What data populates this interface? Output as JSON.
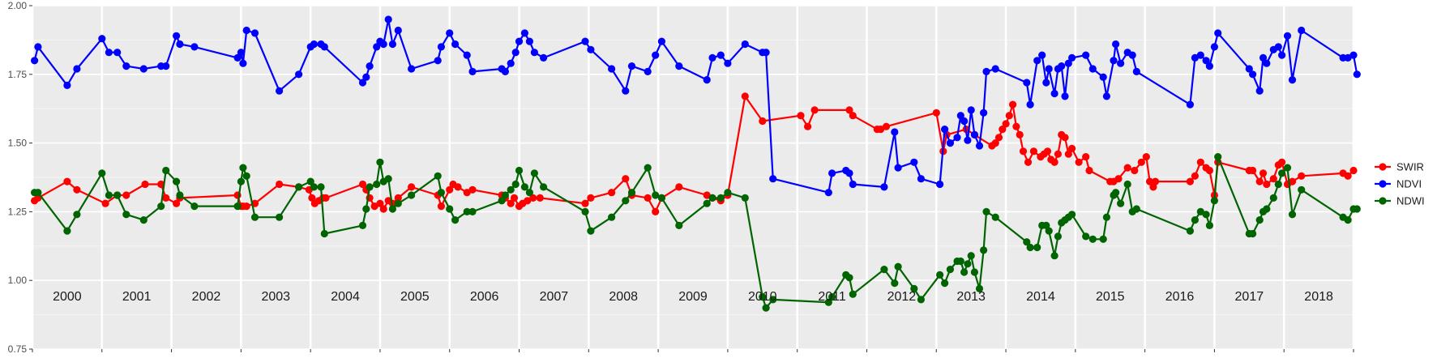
{
  "chart_data": {
    "type": "line",
    "title": "",
    "xlabel": "",
    "ylabel": "",
    "xlim": [
      2000.0,
      2019.0
    ],
    "ylim": [
      0.75,
      2.0
    ],
    "y_ticks": [
      "0.75",
      "1.00",
      "1.25",
      "1.50",
      "1.75",
      "2.00"
    ],
    "grid": true,
    "legend_position": "right",
    "year_labels": [
      "2000",
      "2001",
      "2002",
      "2003",
      "2004",
      "2005",
      "2006",
      "2007",
      "2008",
      "2009",
      "2010",
      "2011",
      "2012",
      "2013",
      "2014",
      "2015",
      "2016",
      "2017",
      "2018"
    ],
    "x": [
      2000.03,
      2000.08,
      2000.5,
      2000.64,
      2001.0,
      2001.1,
      2001.22,
      2001.35,
      2001.6,
      2001.85,
      2001.92,
      2002.07,
      2002.12,
      2002.33,
      2002.95,
      2003.0,
      2003.03,
      2003.08,
      2003.2,
      2003.55,
      2003.83,
      2004.0,
      2004.05,
      2004.15,
      2004.2,
      2004.75,
      2004.8,
      2004.85,
      2004.95,
      2005.0,
      2005.05,
      2005.12,
      2005.18,
      2005.26,
      2005.45,
      2005.83,
      2005.88,
      2006.0,
      2006.08,
      2006.25,
      2006.33,
      2006.75,
      2006.8,
      2006.88,
      2006.95,
      2007.0,
      2007.08,
      2007.15,
      2007.22,
      2007.35,
      2007.95,
      2008.03,
      2008.33,
      2008.53,
      2008.62,
      2008.85,
      2008.96,
      2009.05,
      2009.3,
      2009.7,
      2009.78,
      2009.9,
      2010.0,
      2010.25,
      2010.5,
      2010.55,
      2010.65,
      2011.45,
      2011.5,
      2011.7,
      2011.75,
      2011.8,
      2012.25,
      2012.4,
      2012.45,
      2012.68,
      2012.78,
      2013.05,
      2013.12,
      2013.2,
      2013.3,
      2013.35,
      2013.4,
      2013.45,
      2013.5,
      2013.55,
      2013.62,
      2013.68,
      2013.72,
      2013.85,
      2014.3,
      2014.35,
      2014.45,
      2014.52,
      2014.58,
      2014.62,
      2014.7,
      2014.75,
      2014.8,
      2014.85,
      2014.9,
      2014.95,
      2015.15,
      2015.25,
      2015.4,
      2015.45,
      2015.55,
      2015.58,
      2015.65,
      2015.75,
      2015.82,
      2015.88,
      2016.65,
      2016.72,
      2016.8,
      2016.88,
      2016.93,
      2017.0,
      2017.05,
      2017.5,
      2017.55,
      2017.65,
      2017.7,
      2017.75,
      2017.85,
      2017.92,
      2017.97,
      2018.05,
      2018.12,
      2018.25,
      2018.85,
      2018.92,
      2019.0,
      2019.05
    ],
    "series": [
      {
        "name": "SWIR",
        "color": "#ff0000",
        "x": [
          2000.03,
          2000.08,
          2000.5,
          2000.64,
          2001.05,
          2001.22,
          2001.35,
          2001.62,
          2001.85,
          2001.92,
          2002.07,
          2002.12,
          2002.95,
          2003.0,
          2003.03,
          2003.08,
          2003.2,
          2003.55,
          2003.83,
          2003.98,
          2004.02,
          2004.06,
          2004.12,
          2004.18,
          2004.22,
          2004.75,
          2004.8,
          2004.85,
          2004.92,
          2005.0,
          2005.05,
          2005.12,
          2005.18,
          2005.26,
          2005.45,
          2005.83,
          2005.88,
          2006.0,
          2006.05,
          2006.12,
          2006.25,
          2006.33,
          2006.75,
          2006.8,
          2006.88,
          2006.93,
          2007.0,
          2007.05,
          2007.12,
          2007.2,
          2007.3,
          2007.95,
          2008.03,
          2008.33,
          2008.53,
          2008.62,
          2008.85,
          2008.96,
          2009.05,
          2009.3,
          2009.7,
          2009.78,
          2009.9,
          2010.0,
          2010.25,
          2010.5,
          2011.05,
          2011.15,
          2011.25,
          2011.75,
          2011.8,
          2012.15,
          2012.2,
          2012.28,
          2013.0,
          2013.1,
          2013.15,
          2013.43,
          2013.55,
          2013.8,
          2013.85,
          2013.9,
          2013.95,
          2014.0,
          2014.05,
          2014.1,
          2014.15,
          2014.2,
          2014.25,
          2014.32,
          2014.4,
          2014.5,
          2014.55,
          2014.6,
          2014.65,
          2014.7,
          2014.75,
          2014.8,
          2014.85,
          2014.9,
          2014.95,
          2015.05,
          2015.15,
          2015.2,
          2015.5,
          2015.55,
          2015.62,
          2015.75,
          2015.85,
          2015.95,
          2016.02,
          2016.07,
          2016.12,
          2016.15,
          2016.65,
          2016.72,
          2016.8,
          2016.88,
          2016.93,
          2017.0,
          2017.05,
          2017.5,
          2017.55,
          2017.65,
          2017.7,
          2017.75,
          2017.85,
          2017.92,
          2017.97,
          2018.05,
          2018.12,
          2018.25,
          2018.85,
          2018.92,
          2019.0
        ],
        "values": [
          1.29,
          1.3,
          1.36,
          1.33,
          1.28,
          1.31,
          1.31,
          1.35,
          1.35,
          1.3,
          1.28,
          1.3,
          1.31,
          1.27,
          1.27,
          1.27,
          1.28,
          1.35,
          1.34,
          1.33,
          1.3,
          1.28,
          1.29,
          1.3,
          1.3,
          1.35,
          1.33,
          1.3,
          1.27,
          1.28,
          1.26,
          1.29,
          1.28,
          1.3,
          1.34,
          1.31,
          1.27,
          1.33,
          1.35,
          1.34,
          1.32,
          1.33,
          1.31,
          1.3,
          1.28,
          1.3,
          1.27,
          1.28,
          1.29,
          1.3,
          1.3,
          1.28,
          1.3,
          1.32,
          1.37,
          1.31,
          1.3,
          1.25,
          1.3,
          1.34,
          1.31,
          1.3,
          1.29,
          1.31,
          1.67,
          1.58,
          1.6,
          1.56,
          1.62,
          1.62,
          1.6,
          1.55,
          1.55,
          1.56,
          1.61,
          1.47,
          1.53,
          1.55,
          1.53,
          1.49,
          1.5,
          1.52,
          1.55,
          1.57,
          1.6,
          1.64,
          1.56,
          1.53,
          1.47,
          1.43,
          1.47,
          1.45,
          1.46,
          1.47,
          1.44,
          1.43,
          1.46,
          1.53,
          1.52,
          1.46,
          1.48,
          1.43,
          1.45,
          1.4,
          1.36,
          1.36,
          1.37,
          1.41,
          1.4,
          1.43,
          1.45,
          1.36,
          1.34,
          1.36,
          1.36,
          1.38,
          1.43,
          1.41,
          1.4,
          1.31,
          1.43,
          1.4,
          1.4,
          1.36,
          1.39,
          1.35,
          1.37,
          1.42,
          1.43,
          1.35,
          1.36,
          1.38,
          1.39,
          1.38,
          1.4
        ]
      },
      {
        "name": "NDVI",
        "color": "#0000ff",
        "x": [
          2000.03,
          2000.08,
          2000.5,
          2000.64,
          2001.0,
          2001.1,
          2001.22,
          2001.35,
          2001.6,
          2001.85,
          2001.92,
          2002.07,
          2002.12,
          2002.33,
          2002.95,
          2003.0,
          2003.03,
          2003.08,
          2003.2,
          2003.55,
          2003.83,
          2004.0,
          2004.05,
          2004.15,
          2004.2,
          2004.75,
          2004.8,
          2004.85,
          2004.95,
          2005.0,
          2005.05,
          2005.12,
          2005.18,
          2005.26,
          2005.45,
          2005.83,
          2005.88,
          2006.0,
          2006.08,
          2006.25,
          2006.33,
          2006.75,
          2006.8,
          2006.88,
          2006.95,
          2007.0,
          2007.08,
          2007.15,
          2007.22,
          2007.35,
          2007.95,
          2008.03,
          2008.33,
          2008.53,
          2008.62,
          2008.85,
          2008.96,
          2009.05,
          2009.3,
          2009.7,
          2009.78,
          2009.9,
          2010.0,
          2010.25,
          2010.5,
          2010.55,
          2010.65,
          2011.45,
          2011.5,
          2011.7,
          2011.75,
          2011.8,
          2012.25,
          2012.4,
          2012.45,
          2012.68,
          2012.78,
          2013.05,
          2013.12,
          2013.2,
          2013.3,
          2013.35,
          2013.4,
          2013.45,
          2013.5,
          2013.55,
          2013.62,
          2013.68,
          2013.72,
          2013.85,
          2014.3,
          2014.35,
          2014.45,
          2014.52,
          2014.58,
          2014.62,
          2014.7,
          2014.75,
          2014.8,
          2014.85,
          2014.9,
          2014.95,
          2015.15,
          2015.25,
          2015.4,
          2015.45,
          2015.55,
          2015.58,
          2015.65,
          2015.75,
          2015.82,
          2015.88,
          2016.65,
          2016.72,
          2016.8,
          2016.88,
          2016.93,
          2017.0,
          2017.05,
          2017.5,
          2017.55,
          2017.65,
          2017.7,
          2017.75,
          2017.85,
          2017.92,
          2017.97,
          2018.05,
          2018.12,
          2018.25,
          2018.85,
          2018.92,
          2019.0,
          2019.05
        ],
        "values": [
          1.8,
          1.85,
          1.71,
          1.77,
          1.88,
          1.83,
          1.83,
          1.78,
          1.77,
          1.78,
          1.78,
          1.89,
          1.86,
          1.85,
          1.81,
          1.83,
          1.79,
          1.91,
          1.9,
          1.69,
          1.75,
          1.85,
          1.86,
          1.86,
          1.85,
          1.72,
          1.74,
          1.78,
          1.85,
          1.87,
          1.86,
          1.95,
          1.86,
          1.91,
          1.77,
          1.8,
          1.85,
          1.9,
          1.86,
          1.82,
          1.76,
          1.77,
          1.76,
          1.79,
          1.83,
          1.87,
          1.9,
          1.87,
          1.83,
          1.81,
          1.87,
          1.84,
          1.77,
          1.69,
          1.78,
          1.76,
          1.82,
          1.87,
          1.78,
          1.73,
          1.81,
          1.82,
          1.79,
          1.86,
          1.83,
          1.83,
          1.37,
          1.32,
          1.39,
          1.4,
          1.39,
          1.35,
          1.34,
          1.54,
          1.41,
          1.43,
          1.37,
          1.35,
          1.55,
          1.5,
          1.52,
          1.6,
          1.58,
          1.51,
          1.62,
          1.53,
          1.49,
          1.61,
          1.76,
          1.77,
          1.72,
          1.64,
          1.8,
          1.82,
          1.72,
          1.77,
          1.68,
          1.77,
          1.78,
          1.67,
          1.79,
          1.81,
          1.82,
          1.77,
          1.74,
          1.67,
          1.8,
          1.86,
          1.79,
          1.83,
          1.82,
          1.76,
          1.64,
          1.81,
          1.82,
          1.8,
          1.78,
          1.85,
          1.9,
          1.77,
          1.75,
          1.69,
          1.81,
          1.79,
          1.84,
          1.85,
          1.82,
          1.89,
          1.73,
          1.91,
          1.81,
          1.81,
          1.82,
          1.75
        ]
      },
      {
        "name": "NDWI",
        "color": "#006400",
        "x": [
          2000.03,
          2000.08,
          2000.5,
          2000.64,
          2001.0,
          2001.1,
          2001.22,
          2001.35,
          2001.6,
          2001.85,
          2001.92,
          2002.07,
          2002.12,
          2002.33,
          2002.95,
          2003.0,
          2003.03,
          2003.08,
          2003.2,
          2003.55,
          2003.83,
          2004.0,
          2004.05,
          2004.15,
          2004.2,
          2004.75,
          2004.8,
          2004.85,
          2004.95,
          2005.0,
          2005.05,
          2005.12,
          2005.18,
          2005.26,
          2005.45,
          2005.83,
          2005.88,
          2006.0,
          2006.08,
          2006.25,
          2006.33,
          2006.75,
          2006.8,
          2006.88,
          2006.95,
          2007.0,
          2007.08,
          2007.15,
          2007.22,
          2007.35,
          2007.95,
          2008.03,
          2008.33,
          2008.53,
          2008.62,
          2008.85,
          2008.96,
          2009.05,
          2009.3,
          2009.7,
          2009.78,
          2009.9,
          2010.0,
          2010.25,
          2010.5,
          2010.55,
          2010.65,
          2011.45,
          2011.5,
          2011.7,
          2011.75,
          2011.8,
          2012.25,
          2012.4,
          2012.45,
          2012.68,
          2012.78,
          2013.05,
          2013.12,
          2013.2,
          2013.3,
          2013.35,
          2013.4,
          2013.45,
          2013.5,
          2013.55,
          2013.62,
          2013.68,
          2013.72,
          2013.85,
          2014.3,
          2014.35,
          2014.45,
          2014.52,
          2014.58,
          2014.62,
          2014.7,
          2014.75,
          2014.8,
          2014.85,
          2014.9,
          2014.95,
          2015.15,
          2015.25,
          2015.4,
          2015.45,
          2015.55,
          2015.58,
          2015.65,
          2015.75,
          2015.82,
          2015.88,
          2016.65,
          2016.72,
          2016.8,
          2016.88,
          2016.93,
          2017.0,
          2017.05,
          2017.5,
          2017.55,
          2017.65,
          2017.7,
          2017.75,
          2017.85,
          2017.92,
          2017.97,
          2018.05,
          2018.12,
          2018.25,
          2018.85,
          2018.92,
          2019.0,
          2019.05
        ],
        "values": [
          1.32,
          1.32,
          1.18,
          1.24,
          1.39,
          1.31,
          1.31,
          1.24,
          1.22,
          1.27,
          1.4,
          1.36,
          1.31,
          1.27,
          1.27,
          1.36,
          1.41,
          1.38,
          1.23,
          1.23,
          1.34,
          1.36,
          1.34,
          1.34,
          1.17,
          1.2,
          1.26,
          1.34,
          1.35,
          1.43,
          1.36,
          1.37,
          1.26,
          1.28,
          1.31,
          1.38,
          1.32,
          1.26,
          1.22,
          1.25,
          1.25,
          1.29,
          1.31,
          1.33,
          1.35,
          1.4,
          1.34,
          1.32,
          1.39,
          1.34,
          1.25,
          1.18,
          1.23,
          1.29,
          1.32,
          1.41,
          1.31,
          1.3,
          1.2,
          1.28,
          1.3,
          1.3,
          1.32,
          1.3,
          0.94,
          0.9,
          0.93,
          0.92,
          0.94,
          1.02,
          1.01,
          0.95,
          1.04,
          0.99,
          1.05,
          0.97,
          0.93,
          1.02,
          0.99,
          1.04,
          1.07,
          1.07,
          1.03,
          1.06,
          1.09,
          1.03,
          0.97,
          1.11,
          1.25,
          1.23,
          1.14,
          1.12,
          1.12,
          1.2,
          1.2,
          1.18,
          1.09,
          1.16,
          1.21,
          1.22,
          1.23,
          1.24,
          1.16,
          1.15,
          1.15,
          1.23,
          1.31,
          1.32,
          1.28,
          1.35,
          1.25,
          1.26,
          1.18,
          1.22,
          1.25,
          1.24,
          1.2,
          1.29,
          1.45,
          1.17,
          1.17,
          1.22,
          1.25,
          1.26,
          1.3,
          1.35,
          1.39,
          1.41,
          1.24,
          1.33,
          1.23,
          1.22,
          1.26,
          1.26
        ]
      }
    ]
  }
}
